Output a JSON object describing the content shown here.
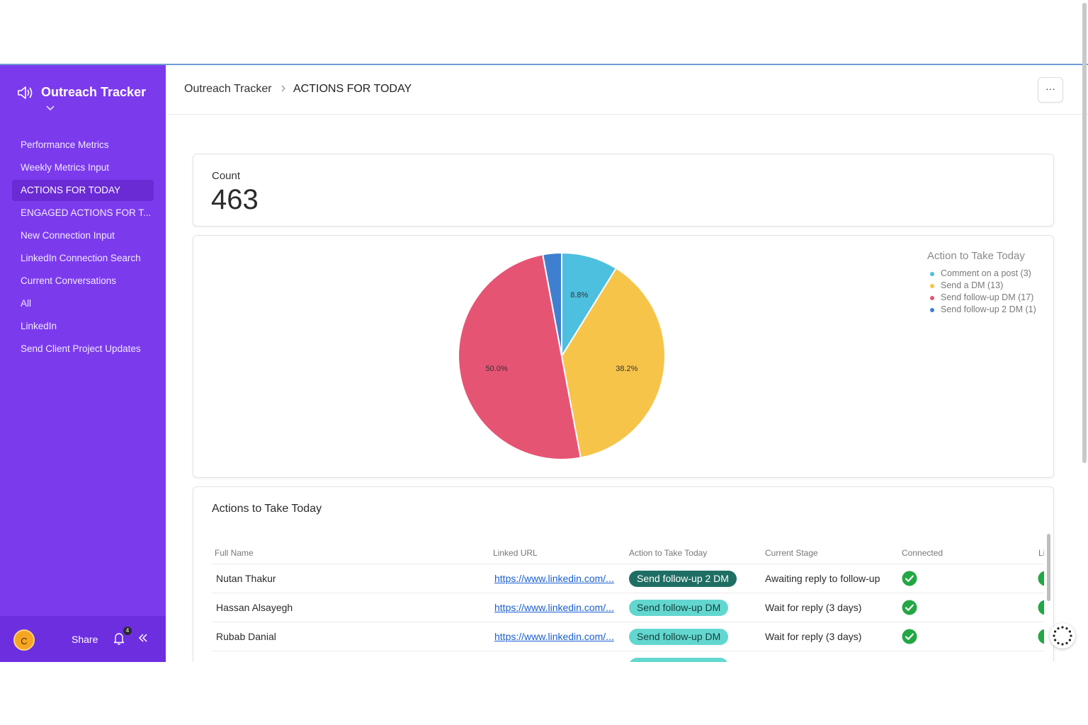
{
  "sidebar": {
    "title": "Outreach Tracker",
    "items": [
      {
        "label": "Performance Metrics",
        "active": false
      },
      {
        "label": "Weekly Metrics Input",
        "active": false
      },
      {
        "label": "ACTIONS FOR TODAY",
        "active": true
      },
      {
        "label": "ENGAGED ACTIONS FOR T...",
        "active": false
      },
      {
        "label": "New Connection Input",
        "active": false
      },
      {
        "label": "LinkedIn Connection Search",
        "active": false
      },
      {
        "label": "Current Conversations",
        "active": false
      },
      {
        "label": "All",
        "active": false
      },
      {
        "label": "LinkedIn",
        "active": false
      },
      {
        "label": "Send Client Project Updates",
        "active": false
      }
    ],
    "footer": {
      "avatar_initial": "C",
      "share_label": "Share",
      "notification_count": "4"
    }
  },
  "header": {
    "breadcrumb_root": "Outreach Tracker",
    "breadcrumb_current": "ACTIONS FOR TODAY",
    "more_label": "···"
  },
  "count_card": {
    "label": "Count",
    "value": "463"
  },
  "pie_card": {
    "legend_title": "Action to Take Today",
    "legend": [
      {
        "label": "Comment on a post (3)",
        "color": "#4dbfdf"
      },
      {
        "label": "Send a DM (13)",
        "color": "#f7c44a"
      },
      {
        "label": "Send follow-up DM (17)",
        "color": "#e65474"
      },
      {
        "label": "Send follow-up 2 DM (1)",
        "color": "#3f7fcf"
      }
    ]
  },
  "chart_data": {
    "type": "pie",
    "title": "Action to Take Today",
    "categories": [
      "Comment on a post",
      "Send a DM",
      "Send follow-up DM",
      "Send follow-up 2 DM"
    ],
    "values": [
      3,
      13,
      17,
      1
    ],
    "data_labels": [
      "8.8%",
      "38.2%",
      "50.0%",
      ""
    ],
    "colors": [
      "#4dbfdf",
      "#f7c44a",
      "#e65474",
      "#3f7fcf"
    ],
    "legend_position": "top-right"
  },
  "table": {
    "title": "Actions to Take Today",
    "columns": [
      "Full Name",
      "Linked URL",
      "Action to Take Today",
      "Current Stage",
      "Connected",
      "Li"
    ],
    "rows": [
      {
        "name": "Nutan Thakur",
        "url": "https://www.linkedin.com/...",
        "action": "Send follow-up 2 DM",
        "action_style": "dark",
        "stage": "Awaiting reply to follow-up",
        "connected": true
      },
      {
        "name": "Hassan Alsayegh",
        "url": "https://www.linkedin.com/...",
        "action": "Send follow-up DM",
        "action_style": "light",
        "stage": "Wait for reply (3 days)",
        "connected": true
      },
      {
        "name": "Rubab Danial",
        "url": "https://www.linkedin.com/...",
        "action": "Send follow-up DM",
        "action_style": "light",
        "stage": "Wait for reply (3 days)",
        "connected": true
      }
    ]
  }
}
